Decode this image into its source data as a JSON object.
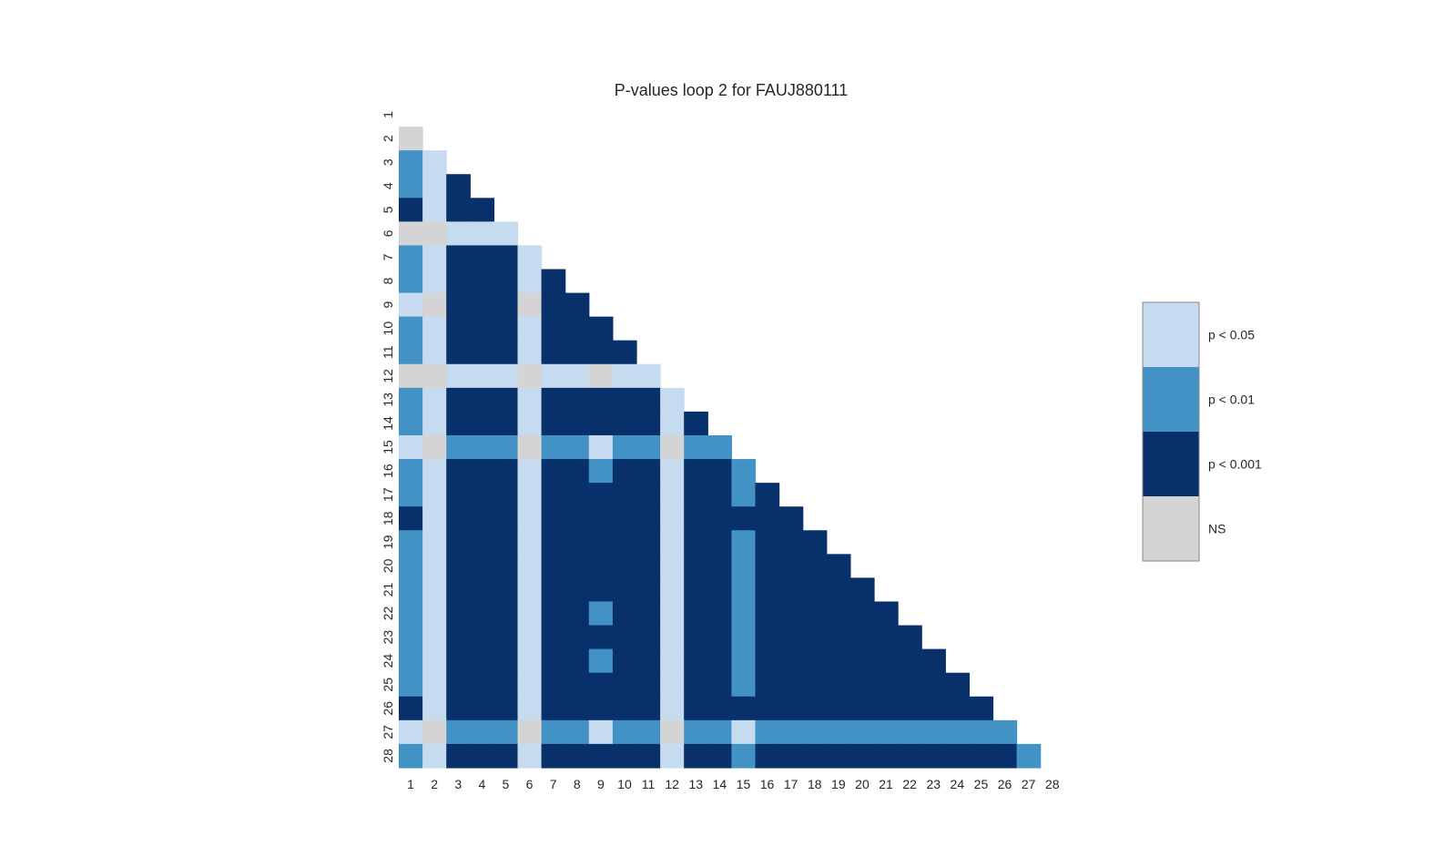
{
  "chart_data": {
    "type": "heatmap",
    "title": "P-values loop 2 for FAUJ880111",
    "xlabel": "",
    "ylabel": "",
    "labels": [
      "1",
      "2",
      "3",
      "4",
      "5",
      "6",
      "7",
      "8",
      "9",
      "10",
      "11",
      "12",
      "13",
      "14",
      "15",
      "16",
      "17",
      "18",
      "19",
      "20",
      "21",
      "22",
      "23",
      "24",
      "25",
      "26",
      "27",
      "28"
    ],
    "categories": [
      {
        "code": "A",
        "label": "p < 0.05",
        "color": "#c6dbef"
      },
      {
        "code": "B",
        "label": "p < 0.01",
        "color": "#4292c6"
      },
      {
        "code": "C",
        "label": "p < 0.001",
        "color": "#08306b"
      },
      {
        "code": "N",
        "label": "NS",
        "color": "#d4d4d4"
      }
    ],
    "legend_position": "right",
    "matrix_lower_triangle": [
      "",
      "N",
      "BA",
      "BAC",
      "CACC",
      "NNAAA",
      "BACCCA",
      "BACCCAC",
      "ANCCCNCC",
      "BACCCACCC",
      "BACCCACCCC",
      "NNAAANAANAA",
      "BACCCACCCCCA",
      "BACCCACCCCCAC",
      "ANBBBNBBABBNBB",
      "BACCCACCBCCACCB",
      "BACCCACCCCCACCBC",
      "CACCCACCCCCACCCCC",
      "BACCCACCCCCACCBCCC",
      "BACCCACCCCCACCBCCCC",
      "BACCCACCCCCACCBCCCCC",
      "BACCCACCBCCACCBCCCCCC",
      "BACCCACCCCCACCBCCCCCCC",
      "BACCCACCBCCACCBCCCCCCCC",
      "BACCCACCCCCACCBCCCCCCCCC",
      "CACCCACCCCCACCCCCCCCCCCCC",
      "ANBBBNBBABBNBBABBBBBBBBBBB",
      "BACCCACCCCCACCBCCCCCCCCCCCB"
    ]
  }
}
